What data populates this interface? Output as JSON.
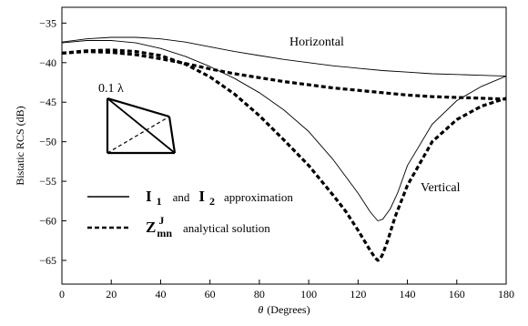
{
  "chart_data": {
    "type": "line",
    "xlabel_symbol": "θ",
    "xlabel": "(Degrees)",
    "ylabel": "Bistatic RCS (dB)",
    "xlim": [
      0,
      180
    ],
    "ylim": [
      -68,
      -33
    ],
    "x_ticks": [
      0,
      20,
      40,
      60,
      80,
      100,
      120,
      140,
      160,
      180
    ],
    "y_ticks": [
      -35,
      -40,
      -45,
      -50,
      -55,
      -60,
      -65
    ],
    "grid": false,
    "legend_position": "bottom-left",
    "series": [
      {
        "style": "solid-thin",
        "x": [
          0,
          10,
          20,
          30,
          40,
          50,
          60,
          70,
          80,
          90,
          100,
          110,
          120,
          125,
          128,
          130,
          133,
          136,
          140,
          150,
          160,
          170,
          180
        ],
        "y": [
          -37.5,
          -37.2,
          -37.2,
          -37.5,
          -38.2,
          -39.2,
          -40.5,
          -42.0,
          -43.8,
          -46.0,
          -48.7,
          -52.3,
          -56.5,
          -58.9,
          -60.0,
          -59.8,
          -58.5,
          -56.5,
          -53.0,
          -47.8,
          -44.8,
          -43.0,
          -41.7
        ]
      },
      {
        "style": "solid-thin",
        "x": [
          0,
          10,
          20,
          30,
          40,
          50,
          60,
          70,
          80,
          90,
          100,
          110,
          120,
          130,
          140,
          150,
          160,
          170,
          180
        ],
        "y": [
          -37.4,
          -37.0,
          -36.8,
          -36.8,
          -37.0,
          -37.4,
          -38.0,
          -38.6,
          -39.1,
          -39.6,
          -40.0,
          -40.4,
          -40.7,
          -41.0,
          -41.2,
          -41.4,
          -41.5,
          -41.6,
          -41.7
        ]
      },
      {
        "style": "dashed-thick",
        "x": [
          0,
          10,
          20,
          30,
          40,
          50,
          60,
          70,
          80,
          90,
          100,
          110,
          115,
          120,
          125,
          127,
          128,
          129,
          130,
          132,
          135,
          140,
          150,
          160,
          170,
          180
        ],
        "y": [
          -38.8,
          -38.5,
          -38.4,
          -38.6,
          -39.1,
          -40.2,
          -41.8,
          -44.0,
          -46.7,
          -49.8,
          -53.0,
          -56.8,
          -58.8,
          -61.2,
          -63.8,
          -64.7,
          -65.0,
          -64.8,
          -64.2,
          -62.5,
          -59.5,
          -55.5,
          -50.0,
          -47.2,
          -45.5,
          -44.5
        ]
      },
      {
        "style": "dashed-thick",
        "x": [
          0,
          10,
          20,
          30,
          40,
          50,
          60,
          70,
          80,
          90,
          100,
          110,
          120,
          130,
          140,
          150,
          160,
          170,
          180
        ],
        "y": [
          -38.8,
          -38.6,
          -38.7,
          -39.0,
          -39.5,
          -40.1,
          -40.8,
          -41.4,
          -41.9,
          -42.4,
          -42.8,
          -43.2,
          -43.5,
          -43.8,
          -44.1,
          -44.3,
          -44.4,
          -44.5,
          -44.6
        ]
      }
    ],
    "annotations": {
      "horizontal": "Horizontal",
      "vertical": "Vertical",
      "inset_label": "0.1 λ"
    },
    "legend": {
      "solid": {
        "sym1": "I",
        "sub1": "1",
        "joiner": "and",
        "sym2": "I",
        "sub2": "2",
        "text": "approximation"
      },
      "dashed": {
        "sym": "Z",
        "sup": "J",
        "sub": "mn",
        "text": "analytical solution"
      }
    }
  }
}
